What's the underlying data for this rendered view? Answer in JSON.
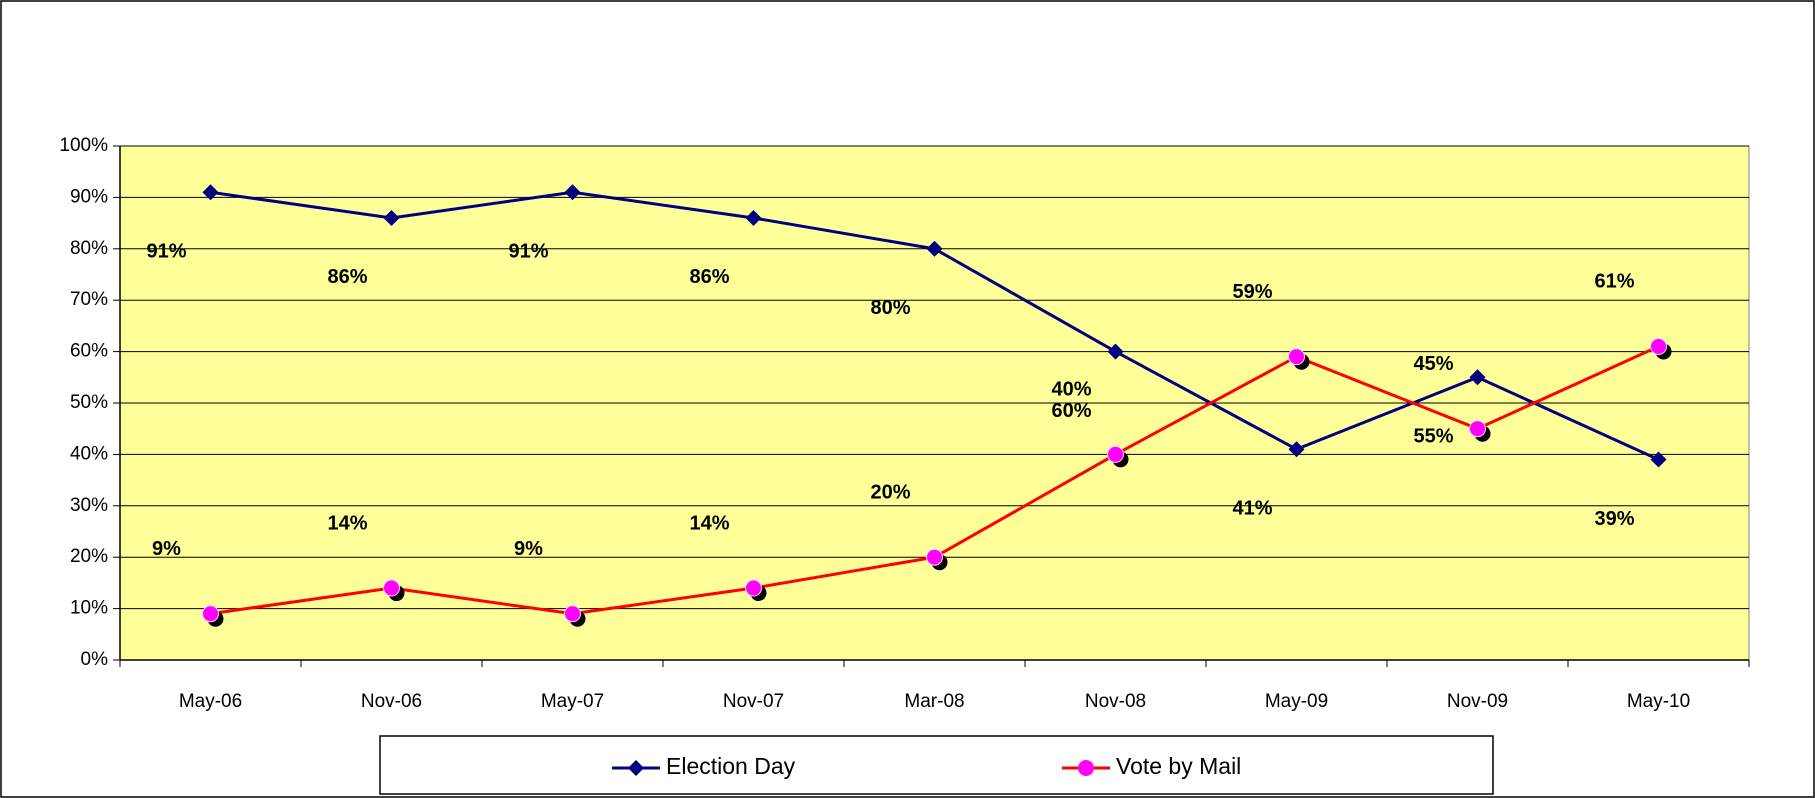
{
  "chart_data": {
    "type": "line",
    "categories": [
      "May-06",
      "Nov-06",
      "May-07",
      "Nov-07",
      "Mar-08",
      "Nov-08",
      "May-09",
      "Nov-09",
      "May-10"
    ],
    "series": [
      {
        "name": "Election Day",
        "color": "#000080",
        "marker": "diamond",
        "values": [
          91,
          86,
          91,
          86,
          80,
          60,
          41,
          55,
          39
        ],
        "value_labels": [
          "91%",
          "86%",
          "91%",
          "86%",
          "80%",
          "60%",
          "41%",
          "55%",
          "39%"
        ]
      },
      {
        "name": "Vote by Mail",
        "color": "#ff0000",
        "marker_color": "#ff00ff",
        "marker": "circle",
        "values": [
          9,
          14,
          9,
          14,
          20,
          40,
          59,
          45,
          61
        ],
        "value_labels": [
          "9%",
          "14%",
          "9%",
          "14%",
          "20%",
          "40%",
          "59%",
          "45%",
          "61%"
        ]
      }
    ],
    "ylim": [
      0,
      100
    ],
    "yticks": [
      {
        "value": 0,
        "label": "0%"
      },
      {
        "value": 10,
        "label": "10%"
      },
      {
        "value": 20,
        "label": "20%"
      },
      {
        "value": 30,
        "label": "30%"
      },
      {
        "value": 40,
        "label": "40%"
      },
      {
        "value": 50,
        "label": "50%"
      },
      {
        "value": 60,
        "label": "60%"
      },
      {
        "value": 70,
        "label": "70%"
      },
      {
        "value": 80,
        "label": "80%"
      },
      {
        "value": 90,
        "label": "90%"
      },
      {
        "value": 100,
        "label": "100%"
      }
    ],
    "grid": true,
    "plot_background": "#ffff99",
    "legend": "bottom"
  }
}
